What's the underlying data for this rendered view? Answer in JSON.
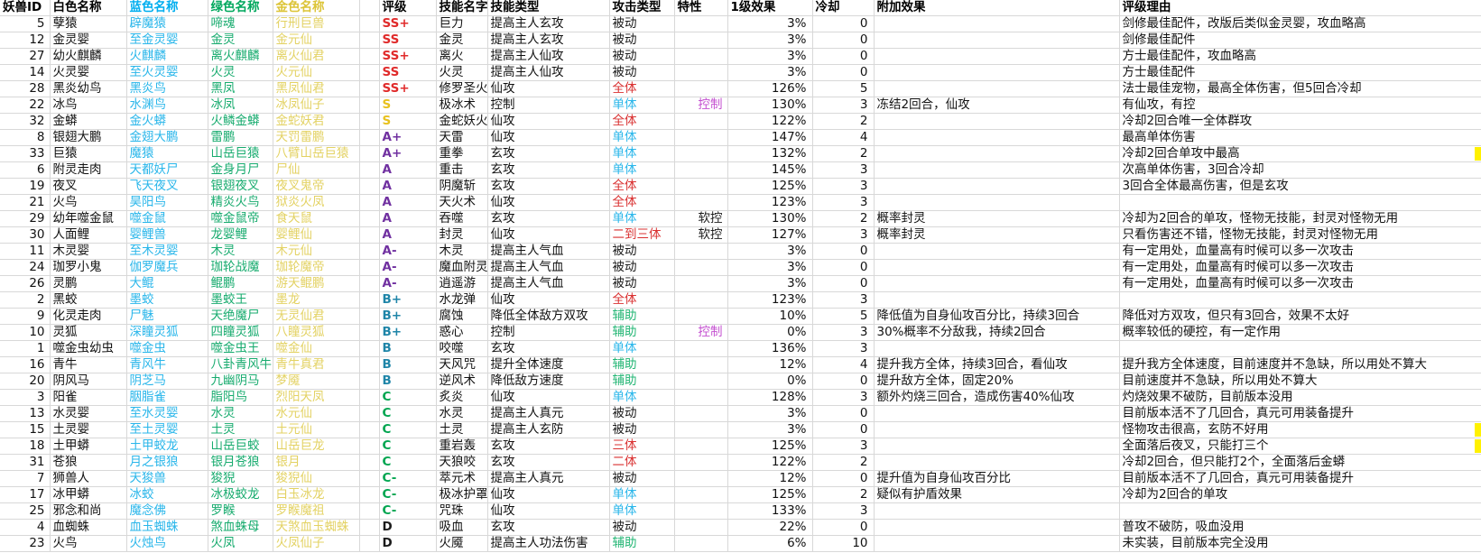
{
  "table": {
    "columns": [
      {
        "key": "id",
        "label": "妖兽ID"
      },
      {
        "key": "white",
        "label": "白色名称"
      },
      {
        "key": "blue",
        "label": "蓝色名称"
      },
      {
        "key": "green",
        "label": "绿色名称"
      },
      {
        "key": "gold",
        "label": "金色名称"
      },
      {
        "key": "spacer",
        "label": ""
      },
      {
        "key": "rating",
        "label": "评级"
      },
      {
        "key": "skill",
        "label": "技能名字"
      },
      {
        "key": "skill_type",
        "label": "技能类型"
      },
      {
        "key": "attack",
        "label": "攻击类型"
      },
      {
        "key": "trait",
        "label": "特性"
      },
      {
        "key": "effect",
        "label": "1级效果"
      },
      {
        "key": "cooldown",
        "label": "冷却"
      },
      {
        "key": "extra",
        "label": "附加效果"
      },
      {
        "key": "reason",
        "label": "评级理由"
      }
    ],
    "rows": [
      {
        "id": "5",
        "white": "孽猿",
        "blue": "辟魔猿",
        "green": "啼魂",
        "gold": "行刑巨兽",
        "rating": "SS+",
        "rating_tier": "ss",
        "skill": "巨力",
        "skill_type": "提高主人玄攻",
        "attack": "被动",
        "attack_style": "passive",
        "trait": "",
        "trait_style": "",
        "effect": "3%",
        "cooldown": "0",
        "extra": "",
        "reason": "剑修最佳配件，改版后类似金灵婴，攻血略高",
        "edge": false
      },
      {
        "id": "12",
        "white": "金灵婴",
        "blue": "至金灵婴",
        "green": "金灵",
        "gold": "金元仙",
        "rating": "SS",
        "rating_tier": "ss",
        "skill": "金灵",
        "skill_type": "提高主人玄攻",
        "attack": "被动",
        "attack_style": "passive",
        "trait": "",
        "trait_style": "",
        "effect": "3%",
        "cooldown": "0",
        "extra": "",
        "reason": "剑修最佳配件",
        "edge": false
      },
      {
        "id": "27",
        "white": "幼火麒麟",
        "blue": "火麒麟",
        "green": "离火麒麟",
        "gold": "离火仙君",
        "rating": "SS+",
        "rating_tier": "ss",
        "skill": "离火",
        "skill_type": "提高主人仙攻",
        "attack": "被动",
        "attack_style": "passive",
        "trait": "",
        "trait_style": "",
        "effect": "3%",
        "cooldown": "0",
        "extra": "",
        "reason": "方士最佳配件，攻血略高",
        "edge": false
      },
      {
        "id": "14",
        "white": "火灵婴",
        "blue": "至火灵婴",
        "green": "火灵",
        "gold": "火元仙",
        "rating": "SS",
        "rating_tier": "ss",
        "skill": "火灵",
        "skill_type": "提高主人仙攻",
        "attack": "被动",
        "attack_style": "passive",
        "trait": "",
        "trait_style": "",
        "effect": "3%",
        "cooldown": "0",
        "extra": "",
        "reason": "方士最佳配件",
        "edge": false
      },
      {
        "id": "28",
        "white": "黑炎幼鸟",
        "blue": "黑炎鸟",
        "green": "黑凤",
        "gold": "黑凤仙君",
        "rating": "SS+",
        "rating_tier": "ss",
        "skill": "修罗圣火",
        "skill_type": "仙攻",
        "attack": "全体",
        "attack_style": "aoe",
        "trait": "",
        "trait_style": "",
        "effect": "126%",
        "cooldown": "5",
        "extra": "",
        "reason": "法士最佳宠物，最高全体伤害，但5回合冷却",
        "edge": false
      },
      {
        "id": "22",
        "white": "冰鸟",
        "blue": "水渊鸟",
        "green": "冰凤",
        "gold": "冰凤仙子",
        "rating": "S",
        "rating_tier": "s",
        "skill": "极冰术",
        "skill_type": "控制",
        "attack": "单体",
        "attack_style": "single",
        "trait": "控制",
        "trait_style": "control",
        "effect": "130%",
        "cooldown": "3",
        "extra": "冻结2回合，仙攻",
        "reason": "有仙攻，有控",
        "edge": false
      },
      {
        "id": "32",
        "white": "金蟒",
        "blue": "金火蟒",
        "green": "火鳞金蟒",
        "gold": "金蛇妖君",
        "rating": "S",
        "rating_tier": "s",
        "skill": "金蛇妖火",
        "skill_type": "仙攻",
        "attack": "全体",
        "attack_style": "aoe",
        "trait": "",
        "trait_style": "",
        "effect": "122%",
        "cooldown": "2",
        "extra": "",
        "reason": "冷却2回合唯一全体群攻",
        "edge": false
      },
      {
        "id": "8",
        "white": "银翅大鹏",
        "blue": "金翅大鹏",
        "green": "雷鹏",
        "gold": "天罚雷鹏",
        "rating": "A+",
        "rating_tier": "a",
        "skill": "天雷",
        "skill_type": "仙攻",
        "attack": "单体",
        "attack_style": "single",
        "trait": "",
        "trait_style": "",
        "effect": "147%",
        "cooldown": "4",
        "extra": "",
        "reason": "最高单体伤害",
        "edge": false
      },
      {
        "id": "33",
        "white": "巨猿",
        "blue": "魔猿",
        "green": "山岳巨猿",
        "gold": "八臂山岳巨猿",
        "rating": "A+",
        "rating_tier": "a",
        "skill": "重拳",
        "skill_type": "玄攻",
        "attack": "单体",
        "attack_style": "single",
        "trait": "",
        "trait_style": "",
        "effect": "132%",
        "cooldown": "2",
        "extra": "",
        "reason": "冷却2回合单攻中最高",
        "edge": true
      },
      {
        "id": "6",
        "white": "附灵走肉",
        "blue": "天都妖尸",
        "green": "金身月尸",
        "gold": "尸仙",
        "rating": "A",
        "rating_tier": "a",
        "skill": "重击",
        "skill_type": "玄攻",
        "attack": "单体",
        "attack_style": "single",
        "trait": "",
        "trait_style": "",
        "effect": "145%",
        "cooldown": "3",
        "extra": "",
        "reason": "次高单体伤害，3回合冷却",
        "edge": false
      },
      {
        "id": "19",
        "white": "夜叉",
        "blue": "飞天夜叉",
        "green": "银翅夜叉",
        "gold": "夜叉鬼帝",
        "rating": "A",
        "rating_tier": "a",
        "skill": "阴魔斩",
        "skill_type": "玄攻",
        "attack": "全体",
        "attack_style": "aoe",
        "trait": "",
        "trait_style": "",
        "effect": "125%",
        "cooldown": "3",
        "extra": "",
        "reason": "3回合全体最高伤害，但是玄攻",
        "edge": false
      },
      {
        "id": "21",
        "white": "火鸟",
        "blue": "昊阳鸟",
        "green": "精炎火鸟",
        "gold": "狱炎火凤",
        "rating": "A",
        "rating_tier": "a",
        "skill": "天火术",
        "skill_type": "仙攻",
        "attack": "全体",
        "attack_style": "aoe",
        "trait": "",
        "trait_style": "",
        "effect": "123%",
        "cooldown": "3",
        "extra": "",
        "reason": "",
        "edge": false
      },
      {
        "id": "29",
        "white": "幼年噬金鼠",
        "blue": "噬金鼠",
        "green": "噬金鼠帝",
        "gold": "食天鼠",
        "rating": "A",
        "rating_tier": "a",
        "skill": "吞噬",
        "skill_type": "玄攻",
        "attack": "单体",
        "attack_style": "single",
        "trait": "软控",
        "trait_style": "soft",
        "effect": "130%",
        "cooldown": "2",
        "extra": "概率封灵",
        "reason": "冷却为2回合的单攻，怪物无技能，封灵对怪物无用",
        "edge": false
      },
      {
        "id": "30",
        "white": "人面鲤",
        "blue": "婴鲤兽",
        "green": "龙婴鲤",
        "gold": "婴鲤仙",
        "rating": "A",
        "rating_tier": "a",
        "skill": "封灵",
        "skill_type": "仙攻",
        "attack": "二到三体",
        "attack_style": "aoe",
        "trait": "软控",
        "trait_style": "soft",
        "effect": "127%",
        "cooldown": "3",
        "extra": "概率封灵",
        "reason": "只看伤害还不错，怪物无技能，封灵对怪物无用",
        "edge": false
      },
      {
        "id": "11",
        "white": "木灵婴",
        "blue": "至木灵婴",
        "green": "木灵",
        "gold": "木元仙",
        "rating": "A-",
        "rating_tier": "a",
        "skill": "木灵",
        "skill_type": "提高主人气血",
        "attack": "被动",
        "attack_style": "passive",
        "trait": "",
        "trait_style": "",
        "effect": "3%",
        "cooldown": "0",
        "extra": "",
        "reason": "有一定用处，血量高有时候可以多一次攻击",
        "edge": false
      },
      {
        "id": "24",
        "white": "珈罗小鬼",
        "blue": "伽罗魔兵",
        "green": "珈轮战魔",
        "gold": "珈轮魔帝",
        "rating": "A-",
        "rating_tier": "a",
        "skill": "魔血附灵",
        "skill_type": "提高主人气血",
        "attack": "被动",
        "attack_style": "passive",
        "trait": "",
        "trait_style": "",
        "effect": "3%",
        "cooldown": "0",
        "extra": "",
        "reason": "有一定用处，血量高有时候可以多一次攻击",
        "edge": false
      },
      {
        "id": "26",
        "white": "灵鹏",
        "blue": "大鲲",
        "green": "鲲鹏",
        "gold": "游天鲲鹏",
        "rating": "A-",
        "rating_tier": "a",
        "skill": "逍遥游",
        "skill_type": "提高主人气血",
        "attack": "被动",
        "attack_style": "passive",
        "trait": "",
        "trait_style": "",
        "effect": "3%",
        "cooldown": "0",
        "extra": "",
        "reason": "有一定用处，血量高有时候可以多一次攻击",
        "edge": false
      },
      {
        "id": "2",
        "white": "黑蛟",
        "blue": "墨蛟",
        "green": "墨蛟王",
        "gold": "墨龙",
        "rating": "B+",
        "rating_tier": "b",
        "skill": "水龙弹",
        "skill_type": "仙攻",
        "attack": "全体",
        "attack_style": "aoe",
        "trait": "",
        "trait_style": "",
        "effect": "123%",
        "cooldown": "3",
        "extra": "",
        "reason": "",
        "edge": false
      },
      {
        "id": "9",
        "white": "化灵走肉",
        "blue": "尸魅",
        "green": "天绝魔尸",
        "gold": "无灵仙君",
        "rating": "B+",
        "rating_tier": "b",
        "skill": "腐蚀",
        "skill_type": "降低全体敌方双攻",
        "attack": "辅助",
        "attack_style": "assist",
        "trait": "",
        "trait_style": "",
        "effect": "10%",
        "cooldown": "5",
        "extra": "降低值为自身仙攻百分比，持续3回合",
        "reason": "降低对方双攻，但只有3回合，效果不太好",
        "edge": false
      },
      {
        "id": "10",
        "white": "灵狐",
        "blue": "深瞳灵狐",
        "green": "四瞳灵狐",
        "gold": "八瞳灵狐",
        "rating": "B+",
        "rating_tier": "b",
        "skill": "惑心",
        "skill_type": "控制",
        "attack": "辅助",
        "attack_style": "assist",
        "trait": "控制",
        "trait_style": "control",
        "effect": "0%",
        "cooldown": "3",
        "extra": "30%概率不分敌我，持续2回合",
        "reason": "概率较低的硬控，有一定作用",
        "edge": false
      },
      {
        "id": "1",
        "white": "噬金虫幼虫",
        "blue": "噬金虫",
        "green": "噬金虫王",
        "gold": "噬金仙",
        "rating": "B",
        "rating_tier": "b",
        "skill": "咬噬",
        "skill_type": "玄攻",
        "attack": "单体",
        "attack_style": "single",
        "trait": "",
        "trait_style": "",
        "effect": "136%",
        "cooldown": "3",
        "extra": "",
        "reason": "",
        "edge": false
      },
      {
        "id": "16",
        "white": "青牛",
        "blue": "青风牛",
        "green": "八卦青风牛",
        "gold": "青牛真君",
        "rating": "B",
        "rating_tier": "b",
        "skill": "天风咒",
        "skill_type": "提升全体速度",
        "attack": "辅助",
        "attack_style": "assist",
        "trait": "",
        "trait_style": "",
        "effect": "12%",
        "cooldown": "4",
        "extra": "提升我方全体，持续3回合，看仙攻",
        "reason": "提升我方全体速度，目前速度并不急缺，所以用处不算大",
        "edge": false
      },
      {
        "id": "20",
        "white": "阴风马",
        "blue": "阴芝马",
        "green": "九幽阴马",
        "gold": "梦魇",
        "rating": "B",
        "rating_tier": "b",
        "skill": "逆风术",
        "skill_type": "降低敌方速度",
        "attack": "辅助",
        "attack_style": "assist",
        "trait": "",
        "trait_style": "",
        "effect": "0%",
        "cooldown": "0",
        "extra": "提升敌方全体，固定20%",
        "reason": "目前速度并不急缺，所以用处不算大",
        "edge": false
      },
      {
        "id": "3",
        "white": "阳雀",
        "blue": "胭脂雀",
        "green": "脂阳鸟",
        "gold": "烈阳天凤",
        "rating": "C",
        "rating_tier": "c",
        "skill": "炙炎",
        "skill_type": "仙攻",
        "attack": "单体",
        "attack_style": "single",
        "trait": "",
        "trait_style": "",
        "effect": "128%",
        "cooldown": "3",
        "extra": "额外灼烧三回合，造成伤害40%仙攻",
        "reason": "灼烧效果不破防，目前版本没用",
        "edge": false
      },
      {
        "id": "13",
        "white": "水灵婴",
        "blue": "至水灵婴",
        "green": "水灵",
        "gold": "水元仙",
        "rating": "C",
        "rating_tier": "c",
        "skill": "水灵",
        "skill_type": "提高主人真元",
        "attack": "被动",
        "attack_style": "passive",
        "trait": "",
        "trait_style": "",
        "effect": "3%",
        "cooldown": "0",
        "extra": "",
        "reason": "目前版本活不了几回合，真元可用装备提升",
        "edge": false
      },
      {
        "id": "15",
        "white": "土灵婴",
        "blue": "至土灵婴",
        "green": "土灵",
        "gold": "土元仙",
        "rating": "C",
        "rating_tier": "c",
        "skill": "土灵",
        "skill_type": "提高主人玄防",
        "attack": "被动",
        "attack_style": "passive",
        "trait": "",
        "trait_style": "",
        "effect": "3%",
        "cooldown": "0",
        "extra": "",
        "reason": "怪物攻击很高，玄防不好用",
        "edge": true
      },
      {
        "id": "18",
        "white": "土甲蟒",
        "blue": "土甲蛟龙",
        "green": "山岳巨蛟",
        "gold": "山岳巨龙",
        "rating": "C",
        "rating_tier": "c",
        "skill": "重岩轰",
        "skill_type": "玄攻",
        "attack": "三体",
        "attack_style": "aoe",
        "trait": "",
        "trait_style": "",
        "effect": "125%",
        "cooldown": "3",
        "extra": "",
        "reason": "全面落后夜叉，只能打三个",
        "edge": true
      },
      {
        "id": "31",
        "white": "苍狼",
        "blue": "月之银狼",
        "green": "银月苍狼",
        "gold": "银月",
        "rating": "C",
        "rating_tier": "c",
        "skill": "天狼咬",
        "skill_type": "玄攻",
        "attack": "二体",
        "attack_style": "aoe",
        "trait": "",
        "trait_style": "",
        "effect": "122%",
        "cooldown": "2",
        "extra": "",
        "reason": "冷却2回合，但只能打2个，全面落后金蟒",
        "edge": false
      },
      {
        "id": "7",
        "white": "狮兽人",
        "blue": "天狻兽",
        "green": "狻猊",
        "gold": "狻猊仙",
        "rating": "C-",
        "rating_tier": "c",
        "skill": "萃元术",
        "skill_type": "提高主人真元",
        "attack": "被动",
        "attack_style": "passive",
        "trait": "",
        "trait_style": "",
        "effect": "12%",
        "cooldown": "0",
        "extra": "提升值为自身仙攻百分比",
        "reason": "目前版本活不了几回合，真元可用装备提升",
        "edge": false
      },
      {
        "id": "17",
        "white": "冰甲蟒",
        "blue": "冰蛟",
        "green": "冰极蛟龙",
        "gold": "白玉冰龙",
        "rating": "C-",
        "rating_tier": "c",
        "skill": "极冰护罩",
        "skill_type": "仙攻",
        "attack": "单体",
        "attack_style": "single",
        "trait": "",
        "trait_style": "",
        "effect": "125%",
        "cooldown": "2",
        "extra": "疑似有护盾效果",
        "reason": "冷却为2回合的单攻",
        "edge": false
      },
      {
        "id": "25",
        "white": "邪念和尚",
        "blue": "魔念佛",
        "green": "罗睺",
        "gold": "罗睺魔祖",
        "rating": "C-",
        "rating_tier": "c",
        "skill": "咒珠",
        "skill_type": "仙攻",
        "attack": "单体",
        "attack_style": "single",
        "trait": "",
        "trait_style": "",
        "effect": "133%",
        "cooldown": "3",
        "extra": "",
        "reason": "",
        "edge": false
      },
      {
        "id": "4",
        "white": "血蜘蛛",
        "blue": "血玉蜘蛛",
        "green": "煞血蛛母",
        "gold": "天煞血玉蜘蛛",
        "rating": "D",
        "rating_tier": "d",
        "skill": "吸血",
        "skill_type": "玄攻",
        "attack": "被动",
        "attack_style": "passive",
        "trait": "",
        "trait_style": "",
        "effect": "22%",
        "cooldown": "0",
        "extra": "",
        "reason": "普攻不破防，吸血没用",
        "edge": false
      },
      {
        "id": "23",
        "white": "火鸟",
        "blue": "火烛鸟",
        "green": "火凤",
        "gold": "火凤仙子",
        "rating": "D",
        "rating_tier": "d",
        "skill": "火魇",
        "skill_type": "提高主人功法伤害",
        "attack": "辅助",
        "attack_style": "assist",
        "trait": "",
        "trait_style": "",
        "effect": "6%",
        "cooldown": "10",
        "extra": "",
        "reason": "未实装，目前版本完全没用",
        "edge": false
      }
    ]
  },
  "colors": {
    "header_blue": "#00AEEF",
    "header_green": "#00A85D",
    "header_gold": "#DCC437",
    "blue_name": "#29B6EA",
    "green_name": "#17AB6E",
    "gold_name": "#E3D263",
    "rating": {
      "ss": "#E02A2A",
      "s": "#E8C11D",
      "a": "#7030A0",
      "b": "#1F85A8",
      "c": "#00A550",
      "d": "#1A1A1A"
    },
    "attack": {
      "passive": "#1A1A1A",
      "aoe": "#D93030",
      "single": "#29B6EA",
      "assist": "#21B573"
    },
    "trait": {
      "control": "#C44FD0",
      "soft": "#1A1A1A"
    },
    "edge_highlight": "#FFF100",
    "gridline": "#D8D8D8"
  }
}
